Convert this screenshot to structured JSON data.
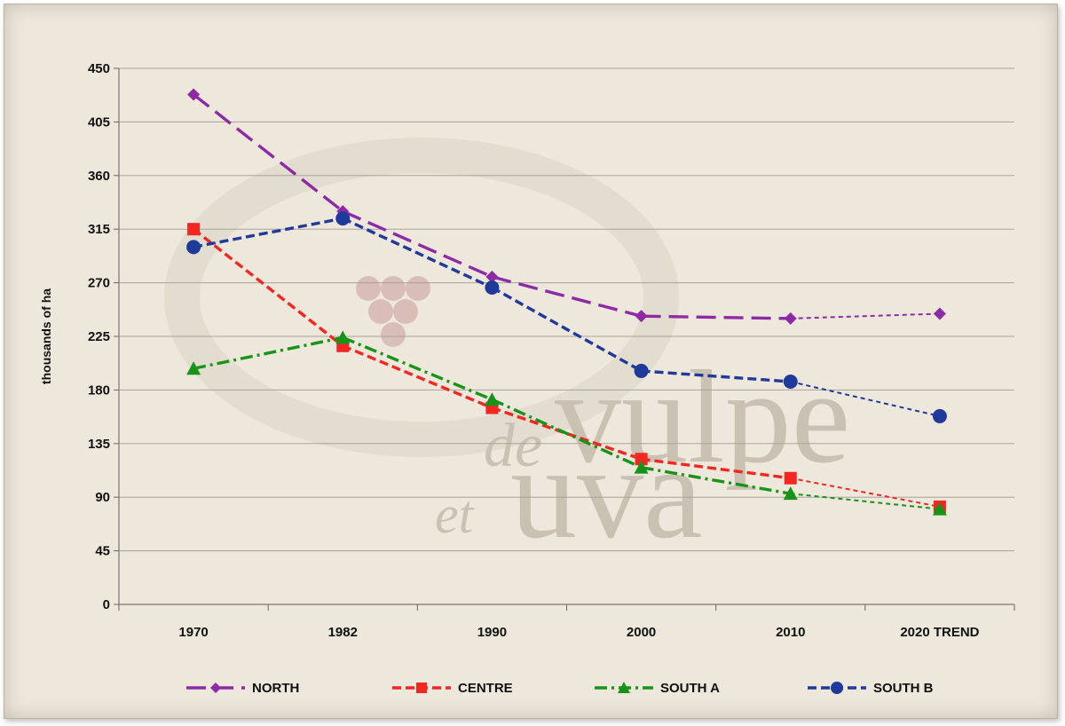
{
  "watermark": {
    "line1_small": "de",
    "line1_big": "vulpe",
    "line2_small": "et",
    "line2_big": "uva"
  },
  "chart_data": {
    "type": "line",
    "title": "",
    "xlabel": "",
    "ylabel": "thousands of ha",
    "categories": [
      "1970",
      "1982",
      "1990",
      "2000",
      "2010",
      "2020 TREND"
    ],
    "ylim": [
      0,
      450
    ],
    "yticks": [
      0,
      45,
      90,
      135,
      180,
      225,
      270,
      315,
      360,
      405,
      450
    ],
    "grid": true,
    "legend_position": "bottom",
    "series": [
      {
        "name": "NORTH",
        "color": "#8e2aa5",
        "marker": "diamond",
        "dash": "long-dash",
        "values": [
          428,
          330,
          275,
          242,
          240,
          244
        ]
      },
      {
        "name": "CENTRE",
        "color": "#f32621",
        "marker": "square",
        "dash": "dash",
        "values": [
          315,
          217,
          165,
          122,
          106,
          82
        ]
      },
      {
        "name": "SOUTH A",
        "color": "#179417",
        "marker": "triangle",
        "dash": "dash-dot",
        "values": [
          198,
          224,
          172,
          115,
          93,
          80
        ]
      },
      {
        "name": "SOUTH B",
        "color": "#1f3a9a",
        "marker": "circle",
        "dash": "dash",
        "values": [
          300,
          324,
          266,
          196,
          187,
          158
        ]
      }
    ]
  }
}
